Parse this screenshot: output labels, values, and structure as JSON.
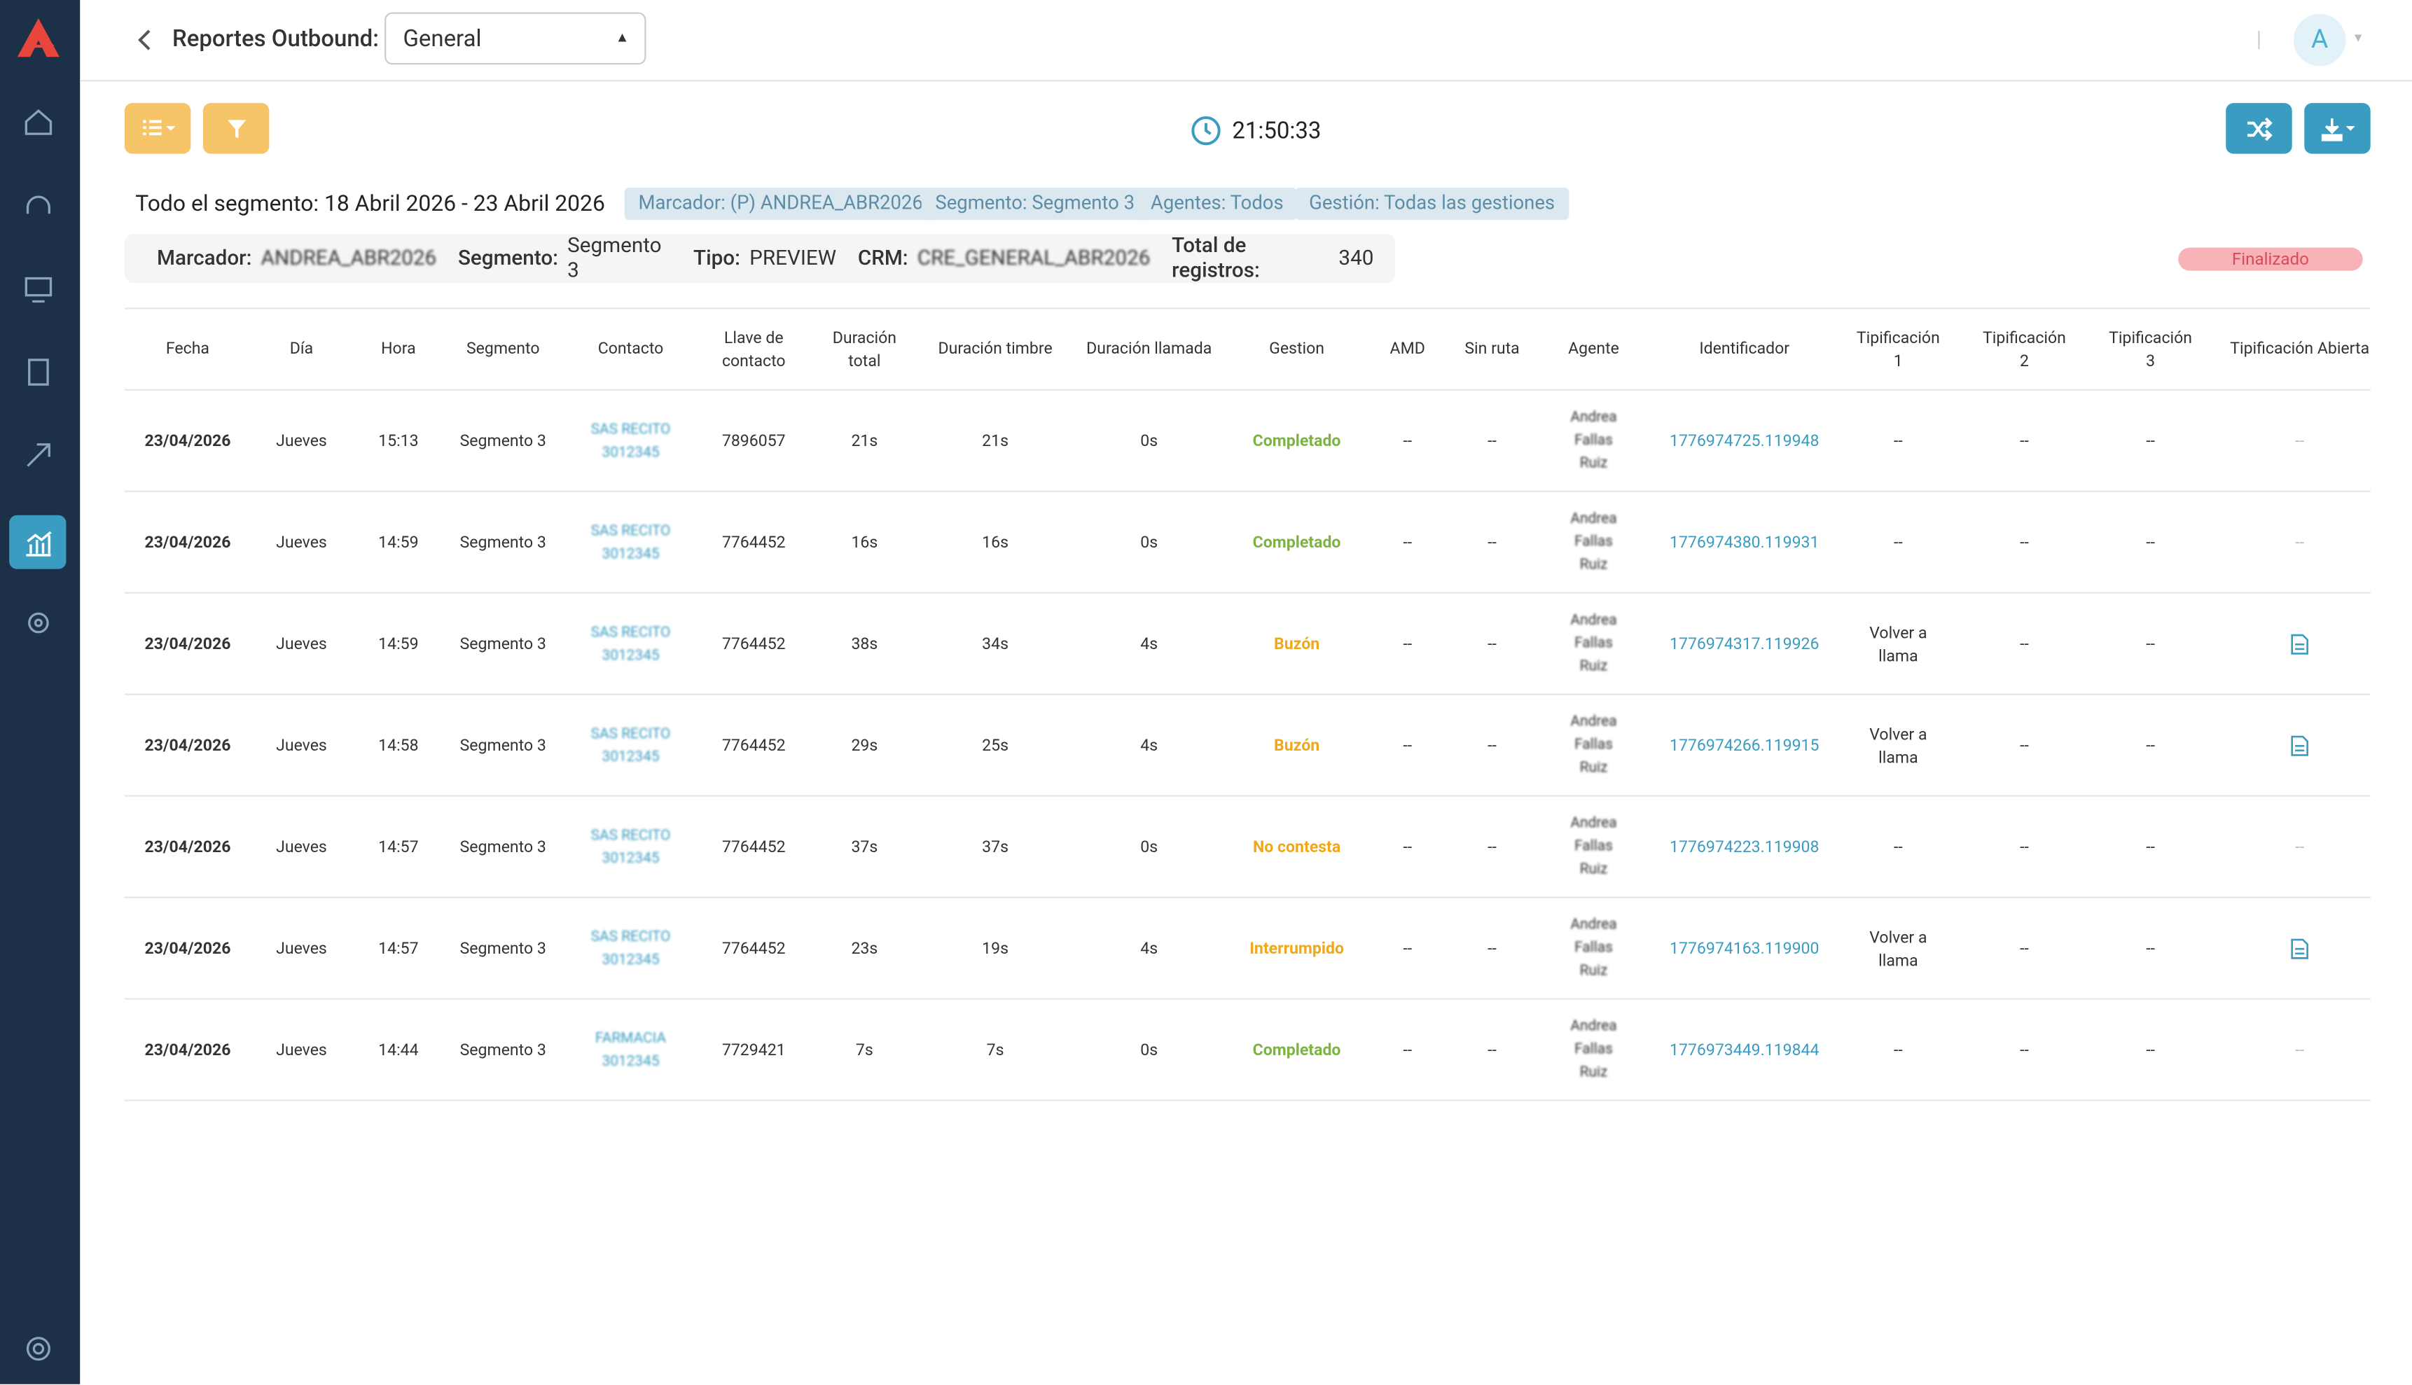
{
  "header": {
    "title": "Reportes Outbound:",
    "select": "General",
    "clock": "21:50:33"
  },
  "summary": {
    "range": "Todo el segmento: 18 Abril 2026 - 23 Abril 2026",
    "chips": [
      "Marcador: (P) ANDREA_ABR2026",
      "Segmento: Segmento 3",
      "Agentes: Todos",
      "Gestión: Todas las gestiones"
    ]
  },
  "info": [
    {
      "label": "Marcador:",
      "value": "ANDREA_ABR2026"
    },
    {
      "label": "Segmento:",
      "value": "Segmento 3"
    },
    {
      "label": "Tipo:",
      "value": "PREVIEW"
    },
    {
      "label": "CRM:",
      "value": "CRE_GENERAL_ABR2026"
    },
    {
      "label": "Total de registros:",
      "value": "340"
    }
  ],
  "status": "Finalizado",
  "table": {
    "columns": [
      "Fecha",
      "Día",
      "Hora",
      "Segmento",
      "Contacto",
      "Llave de contacto",
      "Duración total",
      "Duración timbre",
      "Duración llamada",
      "Gestion",
      "AMD",
      "Sin ruta",
      "Agente",
      "Identificador",
      "Tipificación 1",
      "Tipificación 2",
      "Tipificación 3",
      "Tipificación Abierta"
    ],
    "status_colors": {
      "Completado": "#7cb342",
      "Buzón": "#f0a818",
      "No contesta": "#f0a818",
      "Interrumpido": "#f0a818"
    },
    "rows": [
      [
        "23/04/2026",
        "Jueves",
        "15:13",
        "Segmento 3",
        "SAS RECITO 3012345",
        "7896057",
        "21s",
        "21s",
        "0s",
        "Completado",
        "--",
        "--",
        "Andrea Fallas Ruiz",
        "1776974725.119948",
        "--",
        "--",
        "--",
        "--"
      ],
      [
        "23/04/2026",
        "Jueves",
        "14:59",
        "Segmento 3",
        "SAS RECITO 3012345",
        "7764452",
        "16s",
        "16s",
        "0s",
        "Completado",
        "--",
        "--",
        "Andrea Fallas Ruiz",
        "1776974380.119931",
        "--",
        "--",
        "--",
        "--"
      ],
      [
        "23/04/2026",
        "Jueves",
        "14:59",
        "Segmento 3",
        "SAS RECITO 3012345",
        "7764452",
        "38s",
        "34s",
        "4s",
        "Buzón",
        "--",
        "--",
        "Andrea Fallas Ruiz",
        "1776974317.119926",
        "Volver a llama",
        "--",
        "--",
        null
      ],
      [
        "23/04/2026",
        "Jueves",
        "14:58",
        "Segmento 3",
        "SAS RECITO 3012345",
        "7764452",
        "29s",
        "25s",
        "4s",
        "Buzón",
        "--",
        "--",
        "Andrea Fallas Ruiz",
        "1776974266.119915",
        "Volver a llama",
        "--",
        "--",
        null
      ],
      [
        "23/04/2026",
        "Jueves",
        "14:57",
        "Segmento 3",
        "SAS RECITO 3012345",
        "7764452",
        "37s",
        "37s",
        "0s",
        "No contesta",
        "--",
        "--",
        "Andrea Fallas Ruiz",
        "1776974223.119908",
        "--",
        "--",
        "--",
        "--"
      ],
      [
        "23/04/2026",
        "Jueves",
        "14:57",
        "Segmento 3",
        "SAS RECITO 3012345",
        "7764452",
        "23s",
        "19s",
        "4s",
        "Interrumpido",
        "--",
        "--",
        "Andrea Fallas Ruiz",
        "1776974163.119900",
        "Volver a llama",
        "--",
        "--",
        null
      ],
      [
        "23/04/2026",
        "Jueves",
        "14:44",
        "Segmento 3",
        "FARMACIA 3012345",
        "7729421",
        "7s",
        "7s",
        "0s",
        "Completado",
        "--",
        "--",
        "Andrea Fallas Ruiz",
        "1776973449.119844",
        "--",
        "--",
        "--",
        "--"
      ]
    ]
  }
}
